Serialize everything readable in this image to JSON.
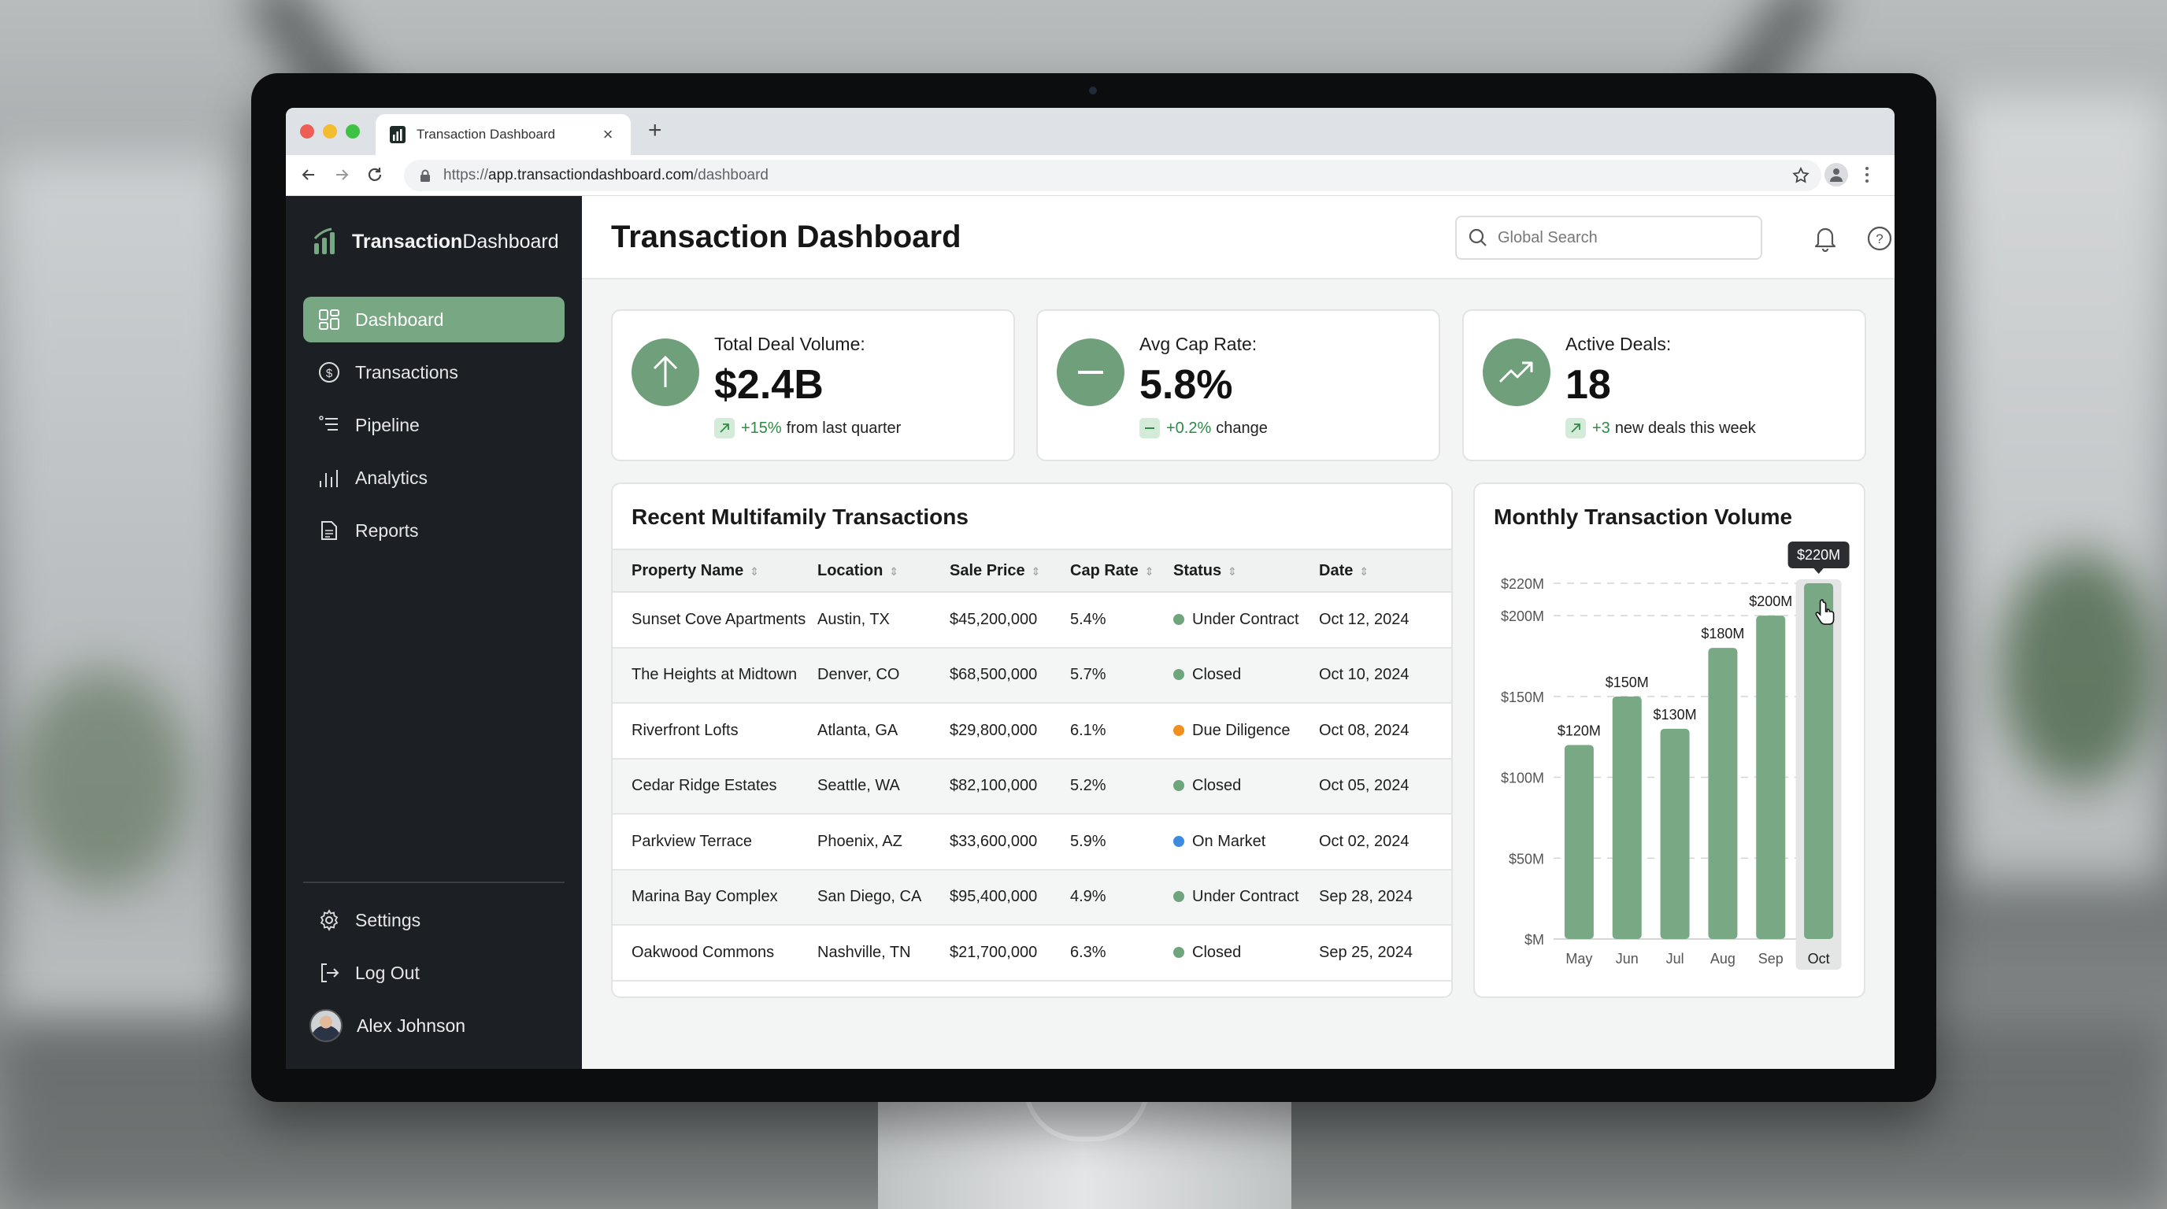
{
  "browser": {
    "tab_title": "Transaction Dashboard",
    "url_scheme": "https://",
    "url_host": "app.transactiondashboard.com",
    "url_path": "/dashboard",
    "new_tab_label": "+",
    "close_tab_label": "×"
  },
  "sidebar": {
    "brand_bold": "Transaction",
    "brand_light": "Dashboard",
    "items": [
      {
        "label": "Dashboard",
        "icon": "grid-icon",
        "active": true
      },
      {
        "label": "Transactions",
        "icon": "dollar-circle-icon"
      },
      {
        "label": "Pipeline",
        "icon": "list-icon"
      },
      {
        "label": "Analytics",
        "icon": "bar-chart-icon"
      },
      {
        "label": "Reports",
        "icon": "document-icon"
      }
    ],
    "bottom_items": [
      {
        "label": "Settings",
        "icon": "gear-icon"
      },
      {
        "label": "Log Out",
        "icon": "logout-icon"
      }
    ],
    "user_name": "Alex Johnson"
  },
  "header": {
    "title": "Transaction Dashboard",
    "search_placeholder": "Global Search"
  },
  "stats": [
    {
      "label": "Total Deal Volume:",
      "value": "$2.4B",
      "delta": "+15%",
      "delta_text": "from last quarter",
      "icon": "arrow-up-icon"
    },
    {
      "label": "Avg Cap Rate:",
      "value": "5.8%",
      "delta": "+0.2%",
      "delta_text": "change",
      "icon": "minus-icon"
    },
    {
      "label": "Active Deals:",
      "value": "18",
      "delta": "+3",
      "delta_text": "new deals this week",
      "icon": "trending-up-icon"
    }
  ],
  "table": {
    "title": "Recent Multifamily Transactions",
    "columns": [
      "Property Name",
      "Location",
      "Sale Price",
      "Cap Rate",
      "Status",
      "Date"
    ],
    "rows": [
      {
        "name": "Sunset Cove Apartments",
        "location": "Austin, TX",
        "price": "$45,200,000",
        "cap": "5.4%",
        "status": "Under Contract",
        "date": "Oct 12, 2024"
      },
      {
        "name": "The Heights at Midtown",
        "location": "Denver, CO",
        "price": "$68,500,000",
        "cap": "5.7%",
        "status": "Closed",
        "date": "Oct 10, 2024"
      },
      {
        "name": "Riverfront Lofts",
        "location": "Atlanta, GA",
        "price": "$29,800,000",
        "cap": "6.1%",
        "status": "Due Diligence",
        "date": "Oct 08, 2024"
      },
      {
        "name": "Cedar Ridge Estates",
        "location": "Seattle, WA",
        "price": "$82,100,000",
        "cap": "5.2%",
        "status": "Closed",
        "date": "Oct 05, 2024"
      },
      {
        "name": "Parkview Terrace",
        "location": "Phoenix, AZ",
        "price": "$33,600,000",
        "cap": "5.9%",
        "status": "On Market",
        "date": "Oct 02, 2024"
      },
      {
        "name": "Marina Bay Complex",
        "location": "San Diego, CA",
        "price": "$95,400,000",
        "cap": "4.9%",
        "status": "Under Contract",
        "date": "Sep 28, 2024"
      },
      {
        "name": "Oakwood Commons",
        "location": "Nashville, TN",
        "price": "$21,700,000",
        "cap": "6.3%",
        "status": "Closed",
        "date": "Sep 25, 2024"
      }
    ],
    "status_colors": {
      "Under Contract": "#6fa57c",
      "Closed": "#6fa57c",
      "Due Diligence": "#f0901e",
      "On Market": "#3c8be0"
    }
  },
  "colors": {
    "accent": "#78a783",
    "bar": "#79a884",
    "sidebar_bg": "#1c1f24",
    "positive": "#2f8a44"
  },
  "chart_data": {
    "type": "bar",
    "title": "Monthly Transaction Volume",
    "categories": [
      "May",
      "Jun",
      "Jul",
      "Aug",
      "Sep",
      "Oct"
    ],
    "values": [
      120,
      150,
      130,
      180,
      200,
      220
    ],
    "value_labels": [
      "$120M",
      "$150M",
      "$130M",
      "$180M",
      "$200M",
      "$220M"
    ],
    "unit": "$M",
    "xlabel": "",
    "ylabel": "",
    "yticks": [
      "$M",
      "$50M",
      "$100M",
      "$150M",
      "$200M",
      "$220M"
    ],
    "ytick_values": [
      0,
      50,
      100,
      150,
      200,
      220
    ],
    "ylim": [
      0,
      220
    ],
    "grid": "dashed horizontal",
    "highlighted": "Oct",
    "tooltip": "$220M"
  }
}
